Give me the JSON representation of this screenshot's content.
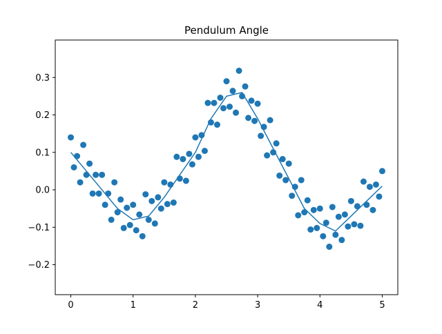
{
  "chart_data": {
    "type": "scatter",
    "title": "Pendulum Angle",
    "xlim": [
      -0.25,
      5.25
    ],
    "ylim": [
      -0.28,
      0.4
    ],
    "xticks": [
      0,
      1,
      2,
      3,
      4,
      5
    ],
    "yticks": [
      {
        "value": -0.2,
        "label": "−0.2"
      },
      {
        "value": -0.1,
        "label": "−0.1"
      },
      {
        "value": 0,
        "label": "0.0"
      },
      0.1,
      0.2,
      0.3
    ],
    "series": [
      {
        "kind": "points",
        "color": "#1f77b4",
        "x": [
          0,
          0.05,
          0.1,
          0.15,
          0.2,
          0.25,
          0.3,
          0.35,
          0.4,
          0.45,
          0.5,
          0.55,
          0.6,
          0.65,
          0.7,
          0.75,
          0.8,
          0.85,
          0.9,
          0.95,
          1,
          1.05,
          1.1,
          1.15,
          1.2,
          1.25,
          1.3,
          1.35,
          1.4,
          1.45,
          1.5,
          1.55,
          1.6,
          1.65,
          1.7,
          1.75,
          1.8,
          1.85,
          1.9,
          1.95,
          2,
          2.05,
          2.1,
          2.15,
          2.2,
          2.25,
          2.3,
          2.35,
          2.4,
          2.45,
          2.5,
          2.55,
          2.6,
          2.65,
          2.7,
          2.75,
          2.8,
          2.85,
          2.9,
          2.95,
          3,
          3.05,
          3.1,
          3.15,
          3.2,
          3.25,
          3.3,
          3.35,
          3.4,
          3.45,
          3.5,
          3.55,
          3.6,
          3.65,
          3.7,
          3.75,
          3.8,
          3.85,
          3.9,
          3.95,
          4,
          4.05,
          4.1,
          4.15,
          4.2,
          4.25,
          4.3,
          4.35,
          4.4,
          4.45,
          4.5,
          4.55,
          4.6,
          4.65,
          4.7,
          4.75,
          4.8,
          4.85,
          4.9,
          4.95,
          5
        ],
        "values": [
          0.14,
          0.06,
          0.09,
          0.02,
          0.12,
          0.04,
          0.07,
          -0.01,
          0.04,
          -0.01,
          0.04,
          -0.04,
          -0.01,
          -0.08,
          0.02,
          -0.06,
          -0.026,
          -0.102,
          -0.048,
          -0.094,
          -0.04,
          -0.108,
          -0.066,
          -0.124,
          -0.012,
          -0.08,
          -0.03,
          -0.09,
          -0.02,
          -0.05,
          0.02,
          -0.038,
          0.014,
          -0.034,
          0.088,
          0.03,
          0.082,
          0.024,
          0.096,
          0.068,
          0.14,
          0.088,
          0.146,
          0.104,
          0.232,
          0.18,
          0.232,
          0.174,
          0.246,
          0.218,
          0.29,
          0.222,
          0.264,
          0.206,
          0.318,
          0.25,
          0.276,
          0.192,
          0.238,
          0.184,
          0.23,
          0.144,
          0.168,
          0.092,
          0.186,
          0.1,
          0.124,
          0.038,
          0.082,
          0.026,
          0.07,
          -0.016,
          0.008,
          -0.068,
          0.026,
          -0.06,
          -0.028,
          -0.106,
          -0.054,
          -0.102,
          -0.05,
          -0.124,
          -0.088,
          -0.152,
          -0.046,
          -0.12,
          -0.072,
          -0.134,
          -0.066,
          -0.098,
          -0.03,
          -0.092,
          -0.044,
          -0.096,
          0.022,
          -0.04,
          0.008,
          -0.054,
          0.014,
          -0.018,
          0.05
        ]
      },
      {
        "kind": "line",
        "color": "#1f77b4",
        "x": [
          0,
          0.25,
          0.5,
          0.75,
          1,
          1.25,
          1.5,
          1.75,
          2,
          2.25,
          2.5,
          2.75,
          3,
          3.25,
          3.5,
          3.75,
          4,
          4.25,
          4.5,
          4.75,
          5
        ],
        "values": [
          0.1,
          0.05,
          0,
          -0.05,
          -0.08,
          -0.07,
          -0.02,
          0.04,
          0.1,
          0.19,
          0.25,
          0.26,
          0.19,
          0.11,
          0.03,
          -0.05,
          -0.09,
          -0.11,
          -0.07,
          -0.03,
          0.01
        ]
      }
    ]
  }
}
